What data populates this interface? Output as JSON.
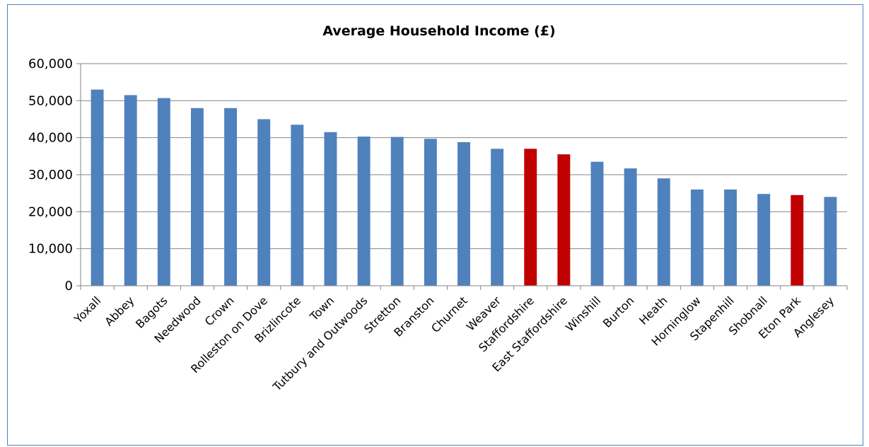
{
  "chart_data": {
    "type": "bar",
    "title": "Average Household Income (£)",
    "xlabel": "",
    "ylabel": "",
    "ylim": [
      0,
      60000
    ],
    "yticks": [
      0,
      10000,
      20000,
      30000,
      40000,
      50000,
      60000
    ],
    "ytick_labels": [
      "0",
      "10,000",
      "20,000",
      "30,000",
      "40,000",
      "50,000",
      "60,000"
    ],
    "grid": true,
    "legend": "none",
    "categories": [
      "Yoxall",
      "Abbey",
      "Bagots",
      "Needwood",
      "Crown",
      "Rolleston on Dove",
      "Brizlincote",
      "Town",
      "Tutbury and Outwoods",
      "Stretton",
      "Branston",
      "Churnet",
      "Weaver",
      "Staffordshire",
      "East Staffordshire",
      "Winshill",
      "Burton",
      "Heath",
      "Horninglow",
      "Stapenhill",
      "Shobnall",
      "Eton Park",
      "Anglesey"
    ],
    "values": [
      53000,
      51500,
      50700,
      48000,
      48000,
      45000,
      43500,
      41500,
      40300,
      40200,
      39700,
      38800,
      37000,
      37000,
      35500,
      33500,
      31700,
      29000,
      26000,
      26000,
      24800,
      24500,
      24000
    ],
    "highlight": [
      false,
      false,
      false,
      false,
      false,
      false,
      false,
      false,
      false,
      false,
      false,
      false,
      false,
      true,
      true,
      false,
      false,
      false,
      false,
      false,
      false,
      true,
      false
    ],
    "colors": {
      "bar": "#4f81bd",
      "highlight": "#c00000",
      "grid": "#868686",
      "axis": "#868686",
      "frame": "#4f81bd"
    }
  }
}
